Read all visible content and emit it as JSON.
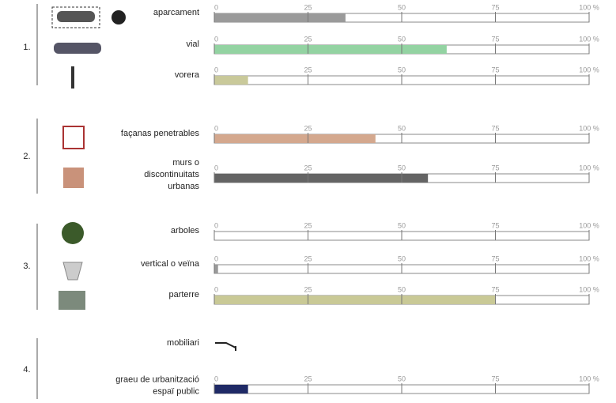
{
  "chart_data": {
    "type": "bar",
    "xlim": [
      0,
      100
    ],
    "xticks": [
      0,
      25,
      50,
      75,
      {
        "value": 100,
        "label": "100 %"
      }
    ],
    "groups": [
      {
        "label": "1.",
        "items": [
          {
            "label": [
              "aparcament"
            ],
            "value": 35,
            "color": "#9a9a9a"
          },
          {
            "label": [
              "vial"
            ],
            "value": 62,
            "color": "#93d3a2"
          },
          {
            "label": [
              "vorera"
            ],
            "value": 9,
            "color": "#c9c99a"
          }
        ]
      },
      {
        "label": "2.",
        "items": [
          {
            "label": [
              "façanas penetrables"
            ],
            "value": 43,
            "color": "#d4a88e"
          },
          {
            "label": [
              "murs o",
              "discontinuitats",
              "urbanas"
            ],
            "value": 57,
            "color": "#646464"
          }
        ]
      },
      {
        "label": "3.",
        "items": [
          {
            "label": [
              "arboles"
            ],
            "value": 0,
            "color": "#9a9a9a"
          },
          {
            "label": [
              "vertical o veïna"
            ],
            "value": 1,
            "color": "#9a9a9a"
          },
          {
            "label": [
              "parterre"
            ],
            "value": 75,
            "color": "#c9c996"
          }
        ]
      },
      {
        "label": "4.",
        "items": [
          {
            "label": [
              "mobiliari"
            ]
          },
          {
            "label": [
              "graeu de urbanització",
              "espaï public"
            ],
            "value": 9,
            "color": "#1f2a66"
          }
        ]
      }
    ]
  }
}
